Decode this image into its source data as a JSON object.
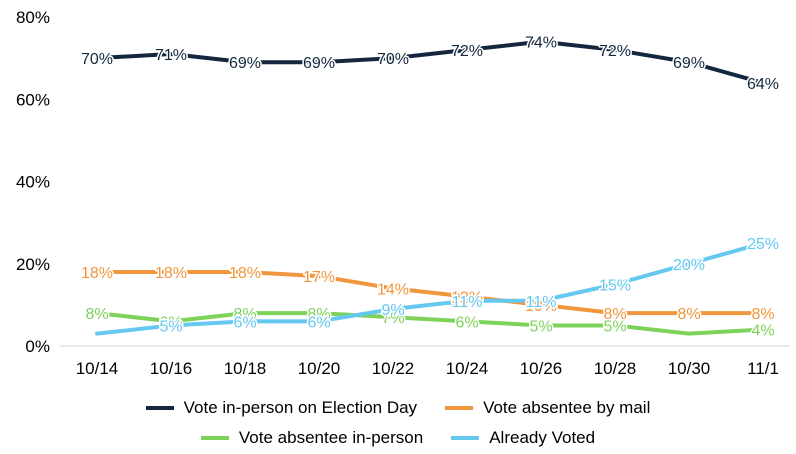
{
  "chart_data": {
    "type": "line",
    "categories": [
      "10/14",
      "10/16",
      "10/18",
      "10/20",
      "10/22",
      "10/24",
      "10/26",
      "10/28",
      "10/30",
      "11/1"
    ],
    "ylim": [
      0,
      80
    ],
    "yticks": [
      0,
      20,
      40,
      60,
      80
    ],
    "ytick_labels": [
      "0%",
      "20%",
      "40%",
      "60%",
      "80%"
    ],
    "grid": false,
    "legend_position": "bottom",
    "series": [
      {
        "name": "Vote in-person on Election Day",
        "color": "#14273e",
        "values": [
          70,
          71,
          69,
          69,
          70,
          72,
          74,
          72,
          69,
          64
        ],
        "labels": [
          "70%",
          "71%",
          "69%",
          "69%",
          "70%",
          "72%",
          "74%",
          "72%",
          "69%",
          "64%"
        ]
      },
      {
        "name": "Vote absentee by mail",
        "color": "#f0963c",
        "values": [
          18,
          18,
          18,
          17,
          14,
          12,
          10,
          8,
          8,
          8
        ],
        "labels": [
          "18%",
          "18%",
          "18%",
          "17%",
          "14%",
          "12%",
          "10%",
          "8%",
          "8%",
          "8%"
        ]
      },
      {
        "name": "Vote absentee in-person",
        "color": "#7dd25a",
        "values": [
          8,
          6,
          8,
          8,
          7,
          6,
          5,
          5,
          3,
          4
        ],
        "labels": [
          "8%",
          "6%",
          "8%",
          "8%",
          "7%",
          "6%",
          "5%",
          "5%",
          "",
          "4%"
        ]
      },
      {
        "name": "Already Voted",
        "color": "#64c8f0",
        "values": [
          3,
          5,
          6,
          6,
          9,
          11,
          11,
          15,
          20,
          25
        ],
        "labels": [
          "",
          "5%",
          "6%",
          "6%",
          "9%",
          "11%",
          "11%",
          "15%",
          "20%",
          "25%"
        ]
      }
    ]
  }
}
